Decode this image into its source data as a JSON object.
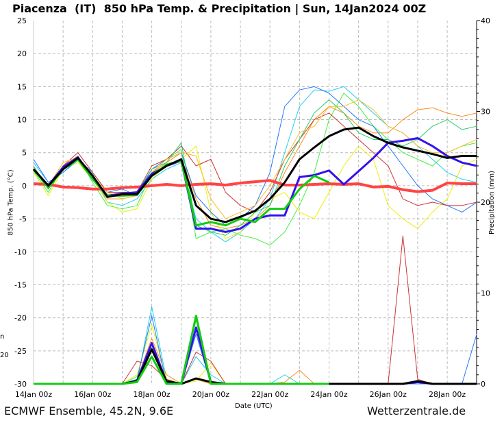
{
  "title": "Piacenza  (IT)  850 hPa Temp. & Precipitation | Sun, 14Jan2024 00Z",
  "footer_left": "ECMWF Ensemble, 45.2N, 9.6E",
  "footer_right": "Wetterzentrale.de",
  "cut_labels": [
    "n",
    "20"
  ],
  "chart_data": {
    "type": "line",
    "xlabel": "Date (UTC)",
    "ylabel": "850 hPa Temp. (°C)",
    "y2label": "Precipitation (mm)",
    "x_step_hours": 12,
    "x_start": "14Jan 00z",
    "x_tick_labels": [
      "14Jan 00z",
      "16Jan 00z",
      "18Jan 00z",
      "20Jan 00z",
      "22Jan 00z",
      "24Jan 00z",
      "26Jan 00z",
      "28Jan 00z"
    ],
    "ylim": [
      -30,
      25
    ],
    "y_ticks": [
      25,
      20,
      15,
      10,
      5,
      0,
      -5,
      -10,
      -15,
      -20,
      -25,
      -30
    ],
    "y2lim": [
      0,
      40
    ],
    "y2_ticks": [
      40,
      30,
      20,
      10,
      0
    ],
    "grid": true,
    "colors": {
      "mean": "#000000",
      "control": "#3311ee",
      "operational": "#11cc11",
      "climate": "#ff4444",
      "grid": "#bbbbbb"
    },
    "temperature": {
      "climate": [
        0.3,
        0.2,
        -0.2,
        -0.3,
        -0.5,
        -0.5,
        -0.3,
        -0.2,
        0,
        0.2,
        0,
        0.2,
        0.3,
        0.1,
        0.4,
        0.6,
        0.8,
        0.1,
        0.1,
        0.2,
        0.3,
        0.2,
        0.3,
        -0.2,
        -0.1,
        -0.6,
        -0.9,
        -0.7,
        0.4,
        0.3,
        0.3
      ],
      "mean": [
        2.5,
        0,
        2.5,
        4.2,
        1.5,
        -1.7,
        -1.3,
        -1.3,
        1.5,
        3,
        4,
        -3,
        -5,
        -5.5,
        -4.7,
        -3.8,
        -2,
        0.5,
        4,
        5.8,
        7.5,
        8.5,
        8.8,
        7.5,
        6.5,
        5.8,
        5.3,
        4.8,
        4.2,
        4.5,
        4.5
      ],
      "control": [
        2.5,
        0,
        2.8,
        4.3,
        1.2,
        -1.5,
        -1.2,
        -1,
        1.8,
        3,
        3.8,
        -6.5,
        -6.5,
        -7,
        -6.5,
        -5,
        -4.5,
        -4.5,
        1.3,
        1.6,
        2.3,
        0.2,
        2.2,
        4.2,
        6.5,
        6.8,
        7.2,
        6,
        4.5,
        3.5,
        3
      ],
      "operational": [
        2.5,
        -0.3,
        2.5,
        4,
        1,
        -1.5,
        -1.5,
        -1.4,
        1.5,
        3.2,
        3.8,
        -6,
        -5.5,
        -6,
        -5,
        -5.5,
        -3.5,
        -3.5,
        -0.5,
        1.5,
        0.5
      ],
      "members": [
        {
          "color": "#ff8c1a",
          "values": [
            2.8,
            -0.5,
            3,
            4.5,
            1,
            -2,
            -2,
            -1.5,
            2,
            3.5,
            5,
            -2,
            -6,
            -6.5,
            -6,
            -5,
            -3,
            2,
            6,
            10,
            12,
            11,
            9,
            8,
            8,
            10,
            11.5,
            11.8,
            11,
            10.5,
            11
          ]
        },
        {
          "color": "#22ccee",
          "values": [
            3.5,
            0.5,
            2,
            3.8,
            1.8,
            -2.5,
            -3,
            -2,
            1,
            2.5,
            3.5,
            -5,
            -7,
            -8.5,
            -7,
            -5,
            -2,
            5,
            12,
            14.5,
            14.3,
            15,
            13,
            11,
            9,
            8,
            6,
            4,
            2,
            1,
            0.5
          ]
        },
        {
          "color": "#44ee44",
          "values": [
            2.2,
            -1,
            2.8,
            4.5,
            0.5,
            -3,
            -3.5,
            -3,
            2,
            4,
            5.5,
            -8,
            -7,
            -6.5,
            -7.5,
            -8,
            -9,
            -7,
            -3,
            2,
            10,
            14,
            12,
            9,
            7,
            5,
            4,
            3,
            5,
            6,
            6.5
          ]
        },
        {
          "color": "#eeee00",
          "values": [
            2,
            -1.5,
            2.5,
            3.5,
            1,
            -2.5,
            -4,
            -3.5,
            1,
            3.2,
            4,
            6,
            -4,
            -8,
            -7,
            -4,
            -2,
            -1,
            -4,
            -5,
            -1,
            3,
            6,
            4,
            -3,
            -5,
            -6.5,
            -4,
            -2,
            3,
            4
          ]
        },
        {
          "color": "#2277ff",
          "values": [
            4,
            0.5,
            2,
            4,
            2,
            -1,
            -0.5,
            -1.5,
            2.5,
            4,
            5,
            -1.5,
            -4,
            -6,
            -5,
            -3,
            2,
            12,
            14.5,
            15,
            14,
            12,
            10,
            9,
            6,
            3,
            0,
            -2,
            -3,
            -4,
            -2.5
          ]
        },
        {
          "color": "#cc3333",
          "values": [
            2.5,
            0,
            3,
            5,
            2,
            -1,
            -1,
            -1,
            3,
            4,
            6,
            3,
            4,
            -1,
            -3,
            -4,
            -1,
            4,
            7,
            10,
            11,
            9,
            7,
            5,
            3,
            -2,
            -3,
            -2.5,
            -3,
            -3,
            -2.5
          ]
        },
        {
          "color": "#22cc66",
          "values": [
            3,
            -0.5,
            2.5,
            4,
            1,
            -1.5,
            -1.5,
            -1,
            2.5,
            3.5,
            6.5,
            -6,
            -7,
            -7.5,
            -6,
            -4,
            -3,
            3,
            7,
            11,
            13,
            11,
            8,
            7,
            7,
            6,
            7,
            9,
            10,
            8.5,
            9
          ]
        },
        {
          "color": "#ffbb22",
          "values": [
            2.5,
            0,
            3.5,
            4.3,
            1.5,
            -1,
            -2,
            -1.5,
            2,
            4,
            5,
            4.5,
            -2,
            -5,
            -4,
            -3,
            0,
            4,
            8,
            9,
            12,
            12,
            13,
            11.5,
            9,
            8,
            6,
            5,
            5,
            6,
            7
          ]
        }
      ]
    },
    "precipitation": {
      "mean": [
        0,
        0,
        0,
        0,
        0,
        0,
        0,
        0.3,
        3.8,
        0.3,
        0,
        0.6,
        0.2,
        0,
        0,
        0,
        0,
        0,
        0,
        0,
        0,
        0,
        0,
        0,
        0,
        0,
        0.3,
        0,
        0,
        0,
        0
      ],
      "control": [
        0,
        0,
        0,
        0,
        0,
        0,
        0,
        0.3,
        4.5,
        0.2,
        0,
        6.2,
        0.2,
        0,
        0,
        0,
        0,
        0,
        0,
        0,
        0,
        0,
        0,
        0,
        0,
        0,
        0.2,
        0,
        0,
        0,
        0
      ],
      "operational": [
        0,
        0,
        0,
        0,
        0,
        0,
        0,
        0.2,
        3,
        0,
        0,
        7.5,
        0,
        0,
        0,
        0,
        0,
        0,
        0,
        0,
        0
      ],
      "members": [
        {
          "color": "#ff8c1a",
          "values": [
            0,
            0,
            0,
            0,
            0,
            0,
            0,
            0.5,
            5,
            1,
            0,
            0.5,
            0,
            0,
            0,
            0,
            0,
            0.2,
            1.5,
            0,
            0,
            0,
            0,
            0,
            0,
            0,
            0,
            0,
            0,
            0,
            0
          ]
        },
        {
          "color": "#22ccee",
          "values": [
            0,
            0,
            0,
            0,
            0,
            0,
            0,
            0.2,
            8.5,
            0.5,
            0,
            3,
            1,
            0,
            0,
            0,
            0,
            1,
            0,
            0,
            0,
            0,
            0,
            0,
            0,
            0,
            0,
            0,
            0,
            0,
            0
          ]
        },
        {
          "color": "#44ee44",
          "values": [
            0,
            0,
            0,
            0,
            0,
            0,
            0,
            0.8,
            4,
            0,
            0.2,
            7,
            0,
            0,
            0,
            0,
            0,
            0,
            0,
            0,
            0,
            0,
            0,
            0,
            0,
            0,
            0,
            0,
            0,
            0,
            0
          ]
        },
        {
          "color": "#eeee00",
          "values": [
            0,
            0,
            0,
            0,
            0,
            0,
            0,
            1,
            6.5,
            0.5,
            0,
            0.3,
            2.3,
            0,
            0,
            0,
            0,
            0,
            0,
            0,
            0,
            0,
            0,
            0,
            0,
            0,
            0,
            0,
            0,
            0,
            0
          ]
        },
        {
          "color": "#2277ff",
          "values": [
            0,
            0,
            0,
            0,
            0,
            0,
            0,
            0.5,
            7.5,
            0,
            0,
            5.5,
            0,
            0,
            0,
            0,
            0,
            0,
            0,
            0,
            0,
            0,
            0,
            0,
            0,
            0,
            0,
            0,
            0,
            0,
            5.5
          ]
        },
        {
          "color": "#cc3333",
          "values": [
            0,
            0,
            0,
            0,
            0,
            0,
            0,
            2.5,
            2,
            0.5,
            0,
            3.5,
            2.5,
            0,
            0,
            0,
            0,
            0,
            0,
            0,
            0,
            0,
            0,
            0,
            0,
            16.3,
            0.5,
            0,
            0,
            0,
            0
          ]
        }
      ]
    }
  }
}
